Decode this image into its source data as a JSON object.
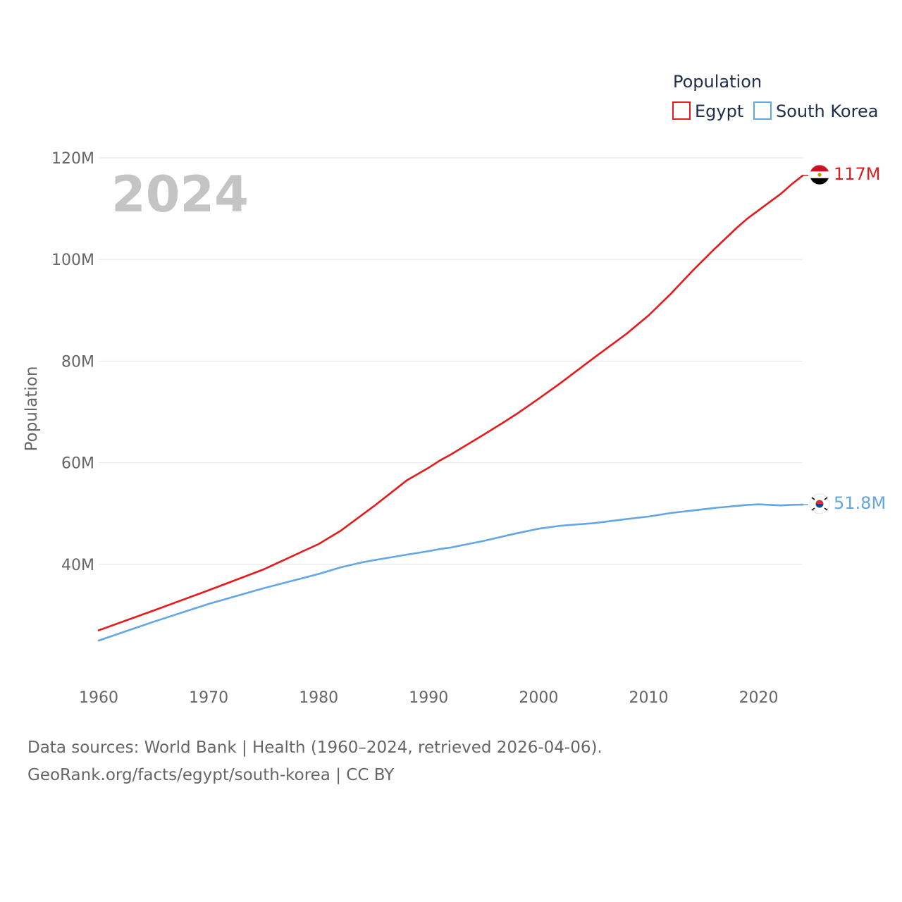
{
  "year_overlay": "2024",
  "legend": {
    "title": "Population",
    "items": [
      {
        "label": "Egypt",
        "color": "#e41a1c"
      },
      {
        "label": "South Korea",
        "color": "#63a6e5"
      }
    ]
  },
  "end_labels": {
    "egypt": "117M",
    "south_korea": "51.8M"
  },
  "source": {
    "line1": "Data sources: World Bank | Health (1960–2024, retrieved 2026-04-06).",
    "line2": "GeoRank.org/facts/egypt/south-korea | CC BY"
  },
  "chart_data": {
    "type": "line",
    "title": "",
    "xlabel": "",
    "ylabel": "Population",
    "xlim": [
      1960,
      2024
    ],
    "ylim": [
      20000000,
      120000000
    ],
    "x_ticks": [
      1960,
      1970,
      1980,
      1990,
      2000,
      2010,
      2020
    ],
    "x_tick_labels": [
      "1960",
      "1970",
      "1980",
      "1990",
      "2000",
      "2010",
      "2020"
    ],
    "y_ticks": [
      40000000,
      60000000,
      80000000,
      100000000,
      120000000
    ],
    "y_tick_labels": [
      "40M",
      "60M",
      "80M",
      "100M",
      "120M"
    ],
    "grid": true,
    "x": [
      1960,
      1965,
      1970,
      1975,
      1980,
      1982,
      1984,
      1985,
      1988,
      1990,
      1991,
      1992,
      1995,
      1997,
      1998,
      2000,
      2002,
      2005,
      2008,
      2010,
      2012,
      2014,
      2016,
      2018,
      2019,
      2020,
      2021,
      2022,
      2023,
      2024
    ],
    "series": [
      {
        "name": "Egypt",
        "color": "#e41a1c",
        "values": [
          27000000,
          30900000,
          34900000,
          39000000,
          44000000,
          46600000,
          49800000,
          51400000,
          56500000,
          59000000,
          60400000,
          61600000,
          65500000,
          68200000,
          69600000,
          72600000,
          75700000,
          80600000,
          85400000,
          89000000,
          93200000,
          97800000,
          102100000,
          106200000,
          108100000,
          109700000,
          111300000,
          112900000,
          114800000,
          116500000
        ]
      },
      {
        "name": "South Korea",
        "color": "#63a6e5",
        "values": [
          25000000,
          28700000,
          32200000,
          35300000,
          38100000,
          39400000,
          40400000,
          40800000,
          41900000,
          42600000,
          43000000,
          43300000,
          44600000,
          45600000,
          46100000,
          47000000,
          47600000,
          48100000,
          48900000,
          49400000,
          50100000,
          50600000,
          51100000,
          51500000,
          51700000,
          51800000,
          51700000,
          51600000,
          51700000,
          51750000
        ]
      }
    ]
  }
}
